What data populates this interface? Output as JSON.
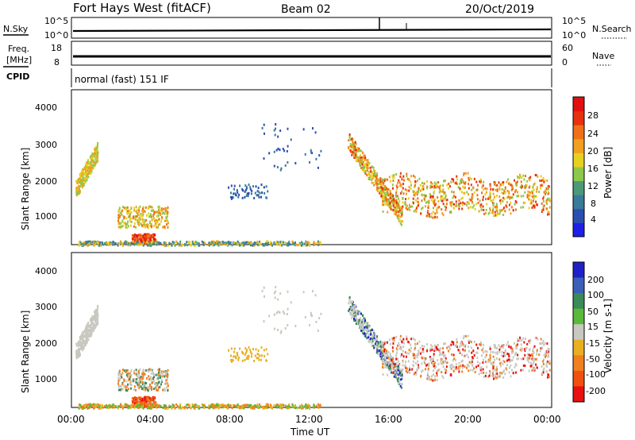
{
  "header": {
    "station": "Fort Hays West (fitACF)",
    "beam": "Beam 02",
    "date": "20/Oct/2019"
  },
  "noise_panel": {
    "left_label": "N.Sky",
    "right_label": "N.Search",
    "left_ticks": [
      "10^5",
      "10^0"
    ],
    "right_ticks": [
      "10^5",
      "10^0"
    ]
  },
  "freq_panel": {
    "left_label_1": "Freq.",
    "left_label_2": "[MHz]",
    "left_ticks": [
      "18",
      "8"
    ],
    "right_label": "Nave",
    "right_ticks": [
      "60",
      "0"
    ]
  },
  "cpid_panel": {
    "label": "CPID",
    "text": "normal (fast) 151 IF"
  },
  "x_axis": {
    "label": "Time UT",
    "ticks": [
      "00:00",
      "04:00",
      "08:00",
      "12:00",
      "16:00",
      "20:00",
      "00:00"
    ]
  },
  "power_panel": {
    "ylabel": "Slant Range [km]",
    "yticks": [
      "4000",
      "3000",
      "2000",
      "1000"
    ],
    "colorbar_label": "Power [dB]",
    "colorbar_ticks": [
      "28",
      "24",
      "20",
      "16",
      "12",
      "8",
      "4"
    ],
    "colors": [
      "#1f1fe8",
      "#2b4fb0",
      "#3a7a9a",
      "#4a9a7a",
      "#8cc84a",
      "#e8d020",
      "#f0a020",
      "#f07018",
      "#e83010",
      "#e01010"
    ]
  },
  "velocity_panel": {
    "ylabel": "Slant Range [km]",
    "yticks": [
      "4000",
      "3000",
      "2000",
      "1000"
    ],
    "colorbar_label": "Velocity [m s-1]",
    "colorbar_ticks": [
      "200",
      "100",
      "50",
      "15",
      "-15",
      "-50",
      "-100",
      "-200"
    ],
    "colors": [
      "#2020c8",
      "#3a5fb8",
      "#3a8a5a",
      "#5ab83a",
      "#c8c8c0",
      "#e8b020",
      "#f08020",
      "#f05010",
      "#e81010"
    ]
  },
  "chart_data": {
    "type": "heatmap",
    "x": [
      "00:00",
      "04:00",
      "08:00",
      "12:00",
      "16:00",
      "20:00",
      "00:00"
    ],
    "ylabel": "Slant Range [km]",
    "xlabel": "Time UT",
    "ylim": [
      200,
      4500
    ],
    "power_scale": {
      "label": "Power [dB]",
      "ticks": [
        4,
        8,
        12,
        16,
        20,
        24,
        28
      ]
    },
    "velocity_scale": {
      "label": "Velocity [m s-1]",
      "ticks": [
        -200,
        -100,
        -50,
        -15,
        15,
        50,
        100,
        200
      ]
    },
    "freq_range": [
      8,
      18
    ],
    "nave_range": [
      0,
      60
    ]
  }
}
